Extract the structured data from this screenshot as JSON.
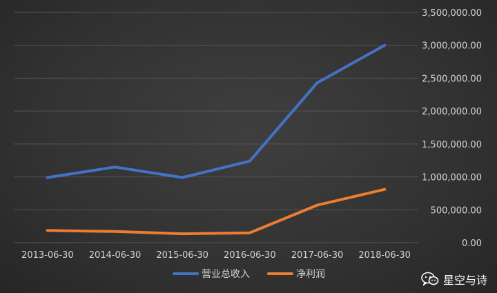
{
  "chart_data": {
    "type": "line",
    "categories": [
      "2013-06-30",
      "2014-06-30",
      "2015-06-30",
      "2016-06-30",
      "2017-06-30",
      "2018-06-30"
    ],
    "series": [
      {
        "name": "营业总收入",
        "color": "#4472c4",
        "values": [
          990000,
          1150000,
          990000,
          1240000,
          2430000,
          3000000
        ]
      },
      {
        "name": "净利润",
        "color": "#ed7d31",
        "values": [
          185000,
          170000,
          135000,
          150000,
          570000,
          810000
        ]
      }
    ],
    "y_ticks": [
      "0.00",
      "500,000.00",
      "1,000,000.00",
      "1,500,000.00",
      "2,000,000.00",
      "2,500,000.00",
      "3,000,000.00",
      "3,500,000.00"
    ],
    "ylim": [
      0,
      3500000
    ],
    "y_axis_side": "right",
    "grid": true,
    "legend_position": "bottom",
    "background": "#333333",
    "gridline_color": "#555555"
  },
  "watermark": {
    "icon": "wechat-icon",
    "text": "星空与诗"
  }
}
